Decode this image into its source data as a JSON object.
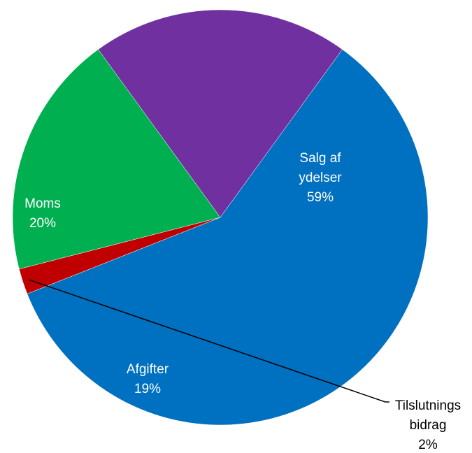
{
  "chart_data": {
    "type": "pie",
    "title": "",
    "start_angle_deg": -54,
    "direction": "clockwise",
    "slices": [
      {
        "name": "Salg af ydelser",
        "label_lines": [
          "Salg af",
          "ydelser"
        ],
        "pct_label": "59%",
        "value": 59,
        "color": "#0070C0",
        "label_color": "#ffffff"
      },
      {
        "name": "Tilslutningsbidrag",
        "label_lines": [
          "Tilslutnings",
          "bidrag"
        ],
        "pct_label": "2%",
        "value": 2,
        "color": "#C00000",
        "label_color": "#000000",
        "leader": true
      },
      {
        "name": "Afgifter",
        "label_lines": [
          "Afgifter"
        ],
        "pct_label": "19%",
        "value": 19,
        "color": "#00B050",
        "label_color": "#ffffff"
      },
      {
        "name": "Moms",
        "label_lines": [
          "Moms"
        ],
        "pct_label": "20%",
        "value": 20,
        "color": "#7030A0",
        "label_color": "#ffffff"
      }
    ]
  }
}
